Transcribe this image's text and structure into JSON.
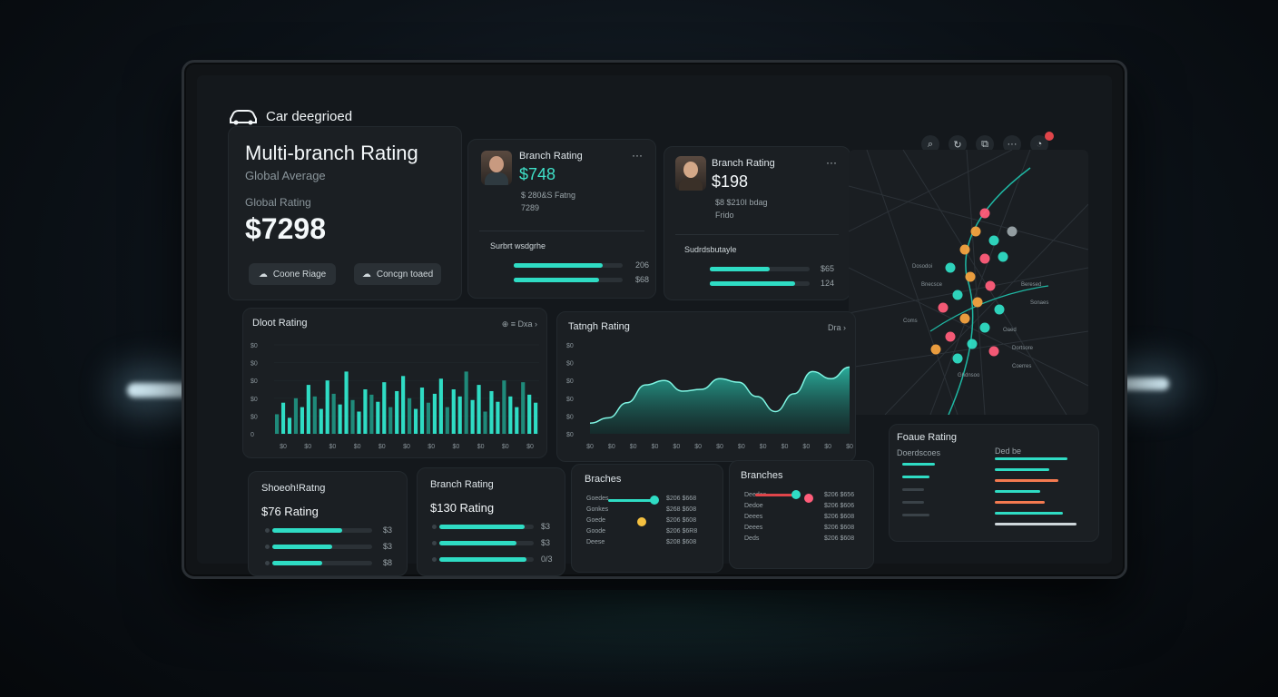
{
  "app": {
    "title": "Car deegrioed"
  },
  "header_icons": [
    "search-icon",
    "refresh-icon",
    "copy-icon",
    "more-icon",
    "notification-icon"
  ],
  "hero": {
    "title": "Multi-branch Rating",
    "subtitle": "Global Average",
    "rating_label": "Global Rating",
    "rating_value": "$7298",
    "btn1": "Coone Riage",
    "btn2": "Concgn toaed"
  },
  "branch1": {
    "label": "Branch Rating",
    "value": "$748",
    "line1": "$ 280&S Fatng",
    "line2": "7289",
    "section": "Surbrt wsdgrhe",
    "rows": [
      {
        "value": "206",
        "fill": 0.82
      },
      {
        "value": "$68",
        "fill": 0.78
      }
    ]
  },
  "branch2": {
    "label": "Branch Rating",
    "value": "$198",
    "line1": "$8 $210I bdag",
    "line2": "Frido",
    "section": "Sudrdsbutayle",
    "rows": [
      {
        "value": "$65",
        "fill": 0.6
      },
      {
        "value": "124",
        "fill": 0.85
      }
    ]
  },
  "bar_chart": {
    "title": "Dloot Rating",
    "controls": "⊕ ≡ Dxa ›"
  },
  "area_chart": {
    "title": "Tatngh Rating",
    "controls": "Dra ›"
  },
  "map": {
    "labels": [
      "Dosodoi",
      "Bnecsce",
      "Beresed",
      "Sonaes",
      "Coms",
      "Oaed",
      "Dortsore",
      "Coerres",
      "Ghdnsoo"
    ]
  },
  "bottom": {
    "card1": {
      "title": "Shoeoh!Ratng",
      "value": "$76 Rating",
      "rows": [
        {
          "v": "$3",
          "f": 0.7
        },
        {
          "v": "$3",
          "f": 0.6
        },
        {
          "v": "$8",
          "f": 0.5
        }
      ]
    },
    "card2": {
      "title": "Branch Rating",
      "value": "$130 Rating",
      "rows": [
        {
          "v": "$3",
          "f": 0.9
        },
        {
          "v": "$3",
          "f": 0.82
        },
        {
          "v": "0/3",
          "f": 0.92
        }
      ]
    },
    "card3": {
      "title": "Braches",
      "items": [
        {
          "name": "Goedes",
          "val": "$206 $668"
        },
        {
          "name": "Gonkes",
          "val": "$268 $608"
        },
        {
          "name": "Goede",
          "val": "$206 $608"
        },
        {
          "name": "Goode",
          "val": "$206 $6R8"
        },
        {
          "name": "Deese",
          "val": "$208 $608"
        }
      ]
    },
    "card4": {
      "title": "Branches",
      "items": [
        {
          "name": "Deedes",
          "val": "$206 $656"
        },
        {
          "name": "Dedoe",
          "val": "$206 $606"
        },
        {
          "name": "Deees",
          "val": "$206 $608"
        },
        {
          "name": "Deees",
          "val": "$206 $608"
        },
        {
          "name": "Deds",
          "val": "$206 $608"
        }
      ]
    },
    "card5": {
      "title": "Foaue Rating",
      "left_head": "Doerdscoes",
      "right_head": "Ded be"
    }
  },
  "chart_data": [
    {
      "type": "bar",
      "title": "Dloot Rating",
      "ytick_labels": [
        "$0",
        "$0",
        "$0",
        "$0",
        "$0",
        "0"
      ],
      "xtick_labels": [
        "$0",
        "$0",
        "$0",
        "$0",
        "$0",
        "$0",
        "$0",
        "$0",
        "$0",
        "$0",
        "$0"
      ],
      "values": [
        22,
        35,
        18,
        40,
        30,
        55,
        42,
        28,
        60,
        45,
        33,
        70,
        38,
        25,
        50,
        44,
        36,
        58,
        30,
        48,
        65,
        40,
        28,
        52,
        35,
        45,
        62,
        30,
        50,
        42,
        70,
        38,
        55,
        25,
        48,
        36,
        60,
        42,
        30,
        58,
        44,
        35
      ],
      "ylim": [
        0,
        100
      ]
    },
    {
      "type": "area",
      "title": "Tatngh Rating",
      "ytick_labels": [
        "$0",
        "$0",
        "$0",
        "$0",
        "$0",
        "$0"
      ],
      "xtick_labels": [
        "$0",
        "$0",
        "$0",
        "$0",
        "$0",
        "$0",
        "$0",
        "$0",
        "$0",
        "$0",
        "$0",
        "$0",
        "$0"
      ],
      "values": [
        12,
        18,
        35,
        55,
        60,
        48,
        50,
        62,
        58,
        42,
        25,
        45,
        70,
        62,
        75
      ],
      "ylim": [
        0,
        100
      ]
    }
  ]
}
